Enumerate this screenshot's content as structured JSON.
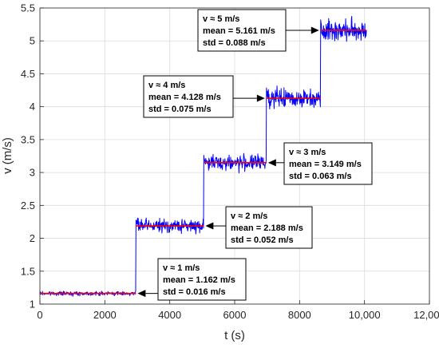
{
  "chart_data": {
    "type": "line",
    "title": "",
    "xlabel": "t (s)",
    "ylabel": "v (m/s)",
    "xlim": [
      0,
      12000
    ],
    "ylim": [
      1,
      5.5
    ],
    "x_ticks": [
      0,
      2000,
      4000,
      6000,
      8000,
      10000,
      12000
    ],
    "x_tick_labels": [
      "0",
      "2000",
      "4000",
      "6000",
      "8000",
      "10,000",
      "12,000"
    ],
    "y_ticks": [
      1,
      1.5,
      2,
      2.5,
      3,
      3.5,
      4,
      4.5,
      5,
      5.5
    ],
    "y_tick_labels": [
      "1",
      "1.5",
      "2",
      "2.5",
      "3",
      "3.5",
      "4",
      "4.5",
      "5",
      "5.5"
    ],
    "grid": true,
    "colors": {
      "signal": "#0000ff",
      "mean": "#ff0000"
    },
    "steps": [
      {
        "t_start": 0,
        "t_end": 2960,
        "mean": 1.162,
        "std": 0.016
      },
      {
        "t_start": 2960,
        "t_end": 5050,
        "mean": 2.188,
        "std": 0.052
      },
      {
        "t_start": 5050,
        "t_end": 6980,
        "mean": 3.149,
        "std": 0.063
      },
      {
        "t_start": 6980,
        "t_end": 8650,
        "mean": 4.128,
        "std": 0.075
      },
      {
        "t_start": 8650,
        "t_end": 10060,
        "mean": 5.161,
        "std": 0.088
      }
    ],
    "annotations": [
      {
        "lines": [
          "v ≈ 1 m/s",
          "mean = 1.162 m/s",
          "std = 0.016 m/s"
        ],
        "arrow_to": [
          2960,
          1.162
        ]
      },
      {
        "lines": [
          "v ≈ 2 m/s",
          "mean = 2.188 m/s",
          "std = 0.052 m/s"
        ],
        "arrow_to": [
          5050,
          2.188
        ]
      },
      {
        "lines": [
          "v ≈ 3 m/s",
          "mean = 3.149 m/s",
          "std = 0.063 m/s"
        ],
        "arrow_to": [
          6980,
          3.149
        ]
      },
      {
        "lines": [
          "v ≈ 4 m/s",
          "mean = 4.128 m/s",
          "std = 0.075 m/s"
        ],
        "arrow_to": [
          6980,
          4.128
        ]
      },
      {
        "lines": [
          "v ≈ 5 m/s",
          "mean = 5.161 m/s",
          "std = 0.088 m/s"
        ],
        "arrow_to": [
          8650,
          5.161
        ]
      }
    ]
  }
}
